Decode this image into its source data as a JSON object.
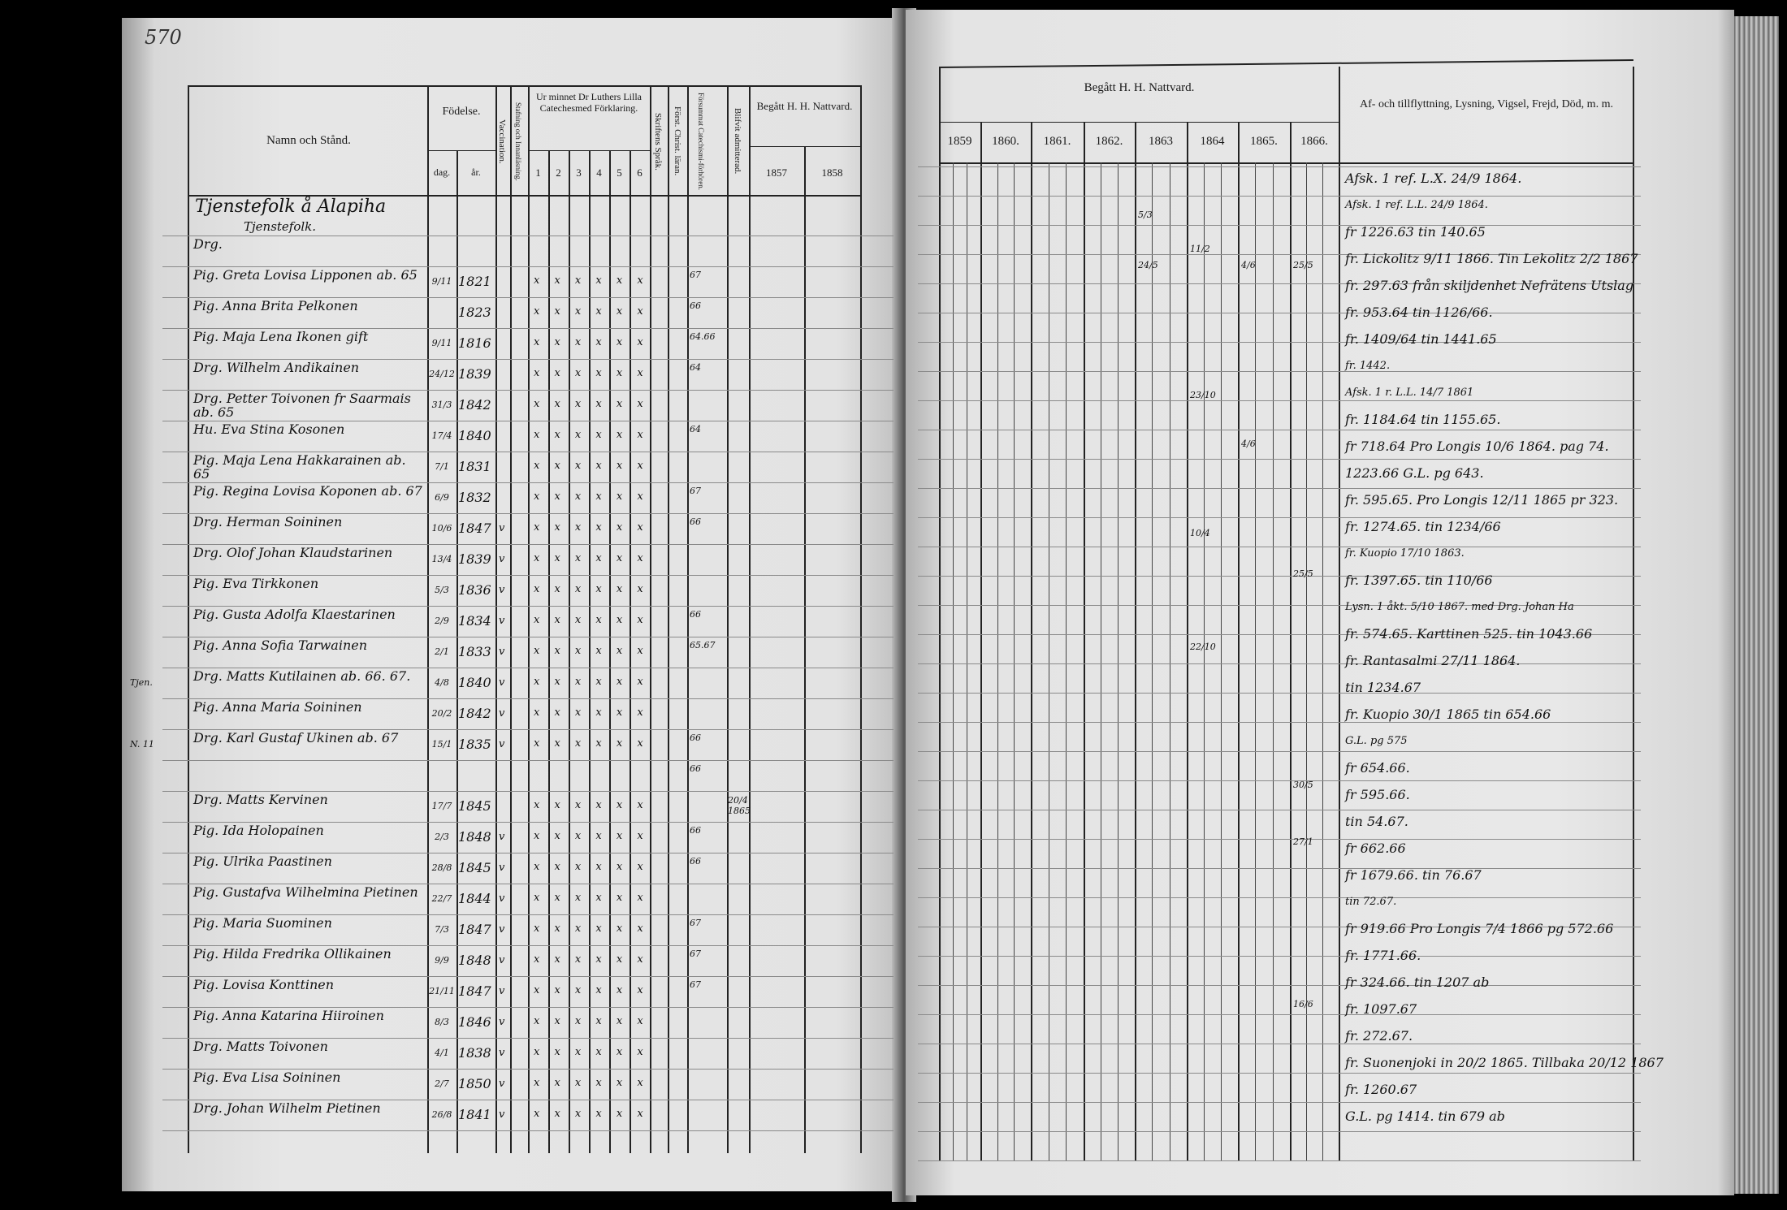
{
  "left_page": {
    "page_number": "570",
    "headers": {
      "name": "Namn och Stånd.",
      "birth": "Födelse.",
      "birth_day": "dag.",
      "birth_year": "år.",
      "vaccination": "Vaccination.",
      "reading": "Stafning och Innanläsning.",
      "catechism": "Ur minnet Dr Luthers Lilla Catechesmed Förklaring.",
      "catechism_cols": [
        "1",
        "2",
        "3",
        "4",
        "5",
        "6"
      ],
      "scripture": "Skriftens Språk.",
      "christianity": "Först. Christ. läran.",
      "missed": "Försummat Catechismi-förhören.",
      "admitted": "Blifvit admitterad.",
      "communion": "Begått H. H. Nattvard.",
      "communion_years": [
        "1857",
        "1858"
      ]
    },
    "section_title": "Tjenstefolk å Alapiha",
    "section_subtitle": "Tjenstefolk.",
    "rows": [
      {
        "name": "Drg.",
        "day": "",
        "year": "",
        "vacc": "",
        "cat": "",
        "fors": ""
      },
      {
        "name": "Pig. Greta Lovisa Lipponen ab. 65",
        "day": "9/11",
        "year": "1821",
        "vacc": "",
        "cat": "x x x x x x",
        "fors": "67"
      },
      {
        "name": "Pig. Anna Brita Pelkonen",
        "day": "",
        "year": "1823",
        "vacc": "",
        "cat": "x x x x x x",
        "fors": "66"
      },
      {
        "name": "Pig. Maja Lena Ikonen gift",
        "day": "9/11",
        "year": "1816",
        "vacc": "",
        "cat": "x x x x x x",
        "fors": "64.66"
      },
      {
        "name": "Drg. Wilhelm Andikainen",
        "day": "24/12",
        "year": "1839",
        "vacc": "",
        "cat": "x x x x x x",
        "fors": "64"
      },
      {
        "name": "Drg. Petter Toivonen fr Saarmais ab. 65",
        "day": "31/3",
        "year": "1842",
        "vacc": "",
        "cat": "x x x x x x",
        "fors": ""
      },
      {
        "name": "Hu. Eva Stina Kosonen",
        "day": "17/4",
        "year": "1840",
        "vacc": "",
        "cat": "x x x x x x",
        "fors": "64"
      },
      {
        "name": "Pig. Maja Lena Hakkarainen ab. 65",
        "day": "7/1",
        "year": "1831",
        "vacc": "",
        "cat": "x x x x x x",
        "fors": ""
      },
      {
        "name": "Pig. Regina Lovisa Koponen ab. 67",
        "day": "6/9",
        "year": "1832",
        "vacc": "",
        "cat": "x x x x x x",
        "fors": "67"
      },
      {
        "name": "Drg. Herman Soininen",
        "day": "10/6",
        "year": "1847",
        "vacc": "v",
        "cat": "x x x x x x",
        "fors": "66"
      },
      {
        "name": "Drg. Olof Johan Klaudstarinen",
        "day": "13/4",
        "year": "1839",
        "vacc": "v",
        "cat": "x x x x x x",
        "fors": ""
      },
      {
        "name": "Pig. Eva Tirkkonen",
        "day": "5/3",
        "year": "1836",
        "vacc": "v",
        "cat": "x x x x x x",
        "fors": ""
      },
      {
        "name": "Pig. Gusta Adolfa Klaestarinen",
        "day": "2/9",
        "year": "1834",
        "vacc": "v",
        "cat": "x x x x x x",
        "fors": "66"
      },
      {
        "name": "Pig. Anna Sofia Tarwainen",
        "day": "2/1",
        "year": "1833",
        "vacc": "v",
        "cat": "x x x x x x",
        "fors": "65.67"
      },
      {
        "name": "Drg. Matts Kutilainen ab. 66. 67.",
        "day": "4/8",
        "year": "1840",
        "vacc": "v",
        "cat": "x x x x x x",
        "fors": "",
        "margin": "Tjen."
      },
      {
        "name": "Pig. Anna Maria Soininen",
        "day": "20/2",
        "year": "1842",
        "vacc": "v",
        "cat": "x x x x x x",
        "fors": ""
      },
      {
        "name": "Drg. Karl Gustaf Ukinen ab. 67",
        "day": "15/1",
        "year": "1835",
        "vacc": "v",
        "cat": "x x x x x x",
        "fors": "66",
        "margin": "N. 11"
      },
      {
        "name": "",
        "day": "",
        "year": "",
        "vacc": "",
        "cat": "",
        "fors": "66"
      },
      {
        "name": "Drg. Matts Kervinen",
        "day": "17/7",
        "year": "1845",
        "vacc": "",
        "cat": "x x x x x x",
        "fors": "",
        "admitted": "20/4 1865"
      },
      {
        "name": "Pig. Ida Holopainen",
        "day": "2/3",
        "year": "1848",
        "vacc": "v",
        "cat": "x x x x x x",
        "fors": "66"
      },
      {
        "name": "Pig. Ulrika Paastinen",
        "day": "28/8",
        "year": "1845",
        "vacc": "v",
        "cat": "x x x x x x",
        "fors": "66"
      },
      {
        "name": "Pig. Gustafva Wilhelmina Pietinen",
        "day": "22/7",
        "year": "1844",
        "vacc": "v",
        "cat": "x x x x x x",
        "fors": ""
      },
      {
        "name": "Pig. Maria Suominen",
        "day": "7/3",
        "year": "1847",
        "vacc": "v",
        "cat": "x x x x x x",
        "fors": "67"
      },
      {
        "name": "Pig. Hilda Fredrika Ollikainen",
        "day": "9/9",
        "year": "1848",
        "vacc": "v",
        "cat": "x x x x x x",
        "fors": "67"
      },
      {
        "name": "Pig. Lovisa Konttinen",
        "day": "21/11",
        "year": "1847",
        "vacc": "v",
        "cat": "x x x x x x",
        "fors": "67"
      },
      {
        "name": "Pig. Anna Katarina Hiiroinen",
        "day": "8/3",
        "year": "1846",
        "vacc": "v",
        "cat": "x x x x x x",
        "fors": ""
      },
      {
        "name": "Drg. Matts Toivonen",
        "day": "4/1",
        "year": "1838",
        "vacc": "v",
        "cat": "x x x x x x",
        "fors": ""
      },
      {
        "name": "Pig. Eva Lisa Soininen",
        "day": "2/7",
        "year": "1850",
        "vacc": "v",
        "cat": "x x x x x x",
        "fors": ""
      },
      {
        "name": "Drg. Johan Wilhelm Pietinen",
        "day": "26/8",
        "year": "1841",
        "vacc": "v",
        "cat": "x x x x x x",
        "fors": ""
      }
    ]
  },
  "right_page": {
    "headers": {
      "communion": "Begått H. H. Nattvard.",
      "communion_years": [
        "1859",
        "1860.",
        "1861.",
        "1862.",
        "1863",
        "1864",
        "1865.",
        "1866."
      ],
      "remarks": "Af- och tillflyttning, Lysning, Vigsel, Frejd, Död, m. m."
    },
    "notes": [
      "Afsk. 1 ref. L.X. 24/9 1864.",
      "Afsk. 1 ref. L.L. 24/9 1864.",
      "fr 1226.63 tin 140.65",
      "fr. Lickolitz 9/11 1866. Tin Lekolitz 2/2 1867",
      "fr. 297.63 från skiljdenhet Nefrätens Utslag",
      "fr. 953.64 tin 1126/66.",
      "fr. 1409/64 tin 1441.65",
      "fr. 1442.",
      "Afsk. 1 r. L.L. 14/7 1861",
      "fr. 1184.64 tin 1155.65.",
      "fr 718.64 Pro Longis 10/6 1864. pag 74.",
      "1223.66 G.L. pg 643.",
      "fr. 595.65. Pro Longis 12/11 1865 pr 323.",
      "fr. 1274.65. tin 1234/66",
      "fr. Kuopio 17/10 1863.",
      "fr. 1397.65. tin 110/66",
      "Lysn. 1 åkt. 5/10 1867. med Drg. Johan Ha",
      "fr. 574.65. Karttinen 525. tin 1043.66",
      "fr. Rantasalmi 27/11 1864.",
      "tin 1234.67",
      "fr. Kuopio 30/1 1865 tin 654.66",
      "G.L. pg 575",
      "fr 654.66.",
      "fr 595.66.",
      "tin 54.67.",
      "fr 662.66",
      "fr 1679.66. tin 76.67",
      "tin 72.67.",
      "fr 919.66 Pro Longis 7/4 1866 pg 572.66",
      "fr. 1771.66.",
      "fr 324.66. tin 1207 ab",
      "fr. 1097.67",
      "fr. 272.67.",
      "fr. Suonenjoki in 20/2 1865. Tillbaka 20/12 1867",
      "fr. 1260.67",
      "G.L. pg 1414. tin 679 ab"
    ],
    "marks": [
      {
        "col": "1863",
        "text": "5/3"
      },
      {
        "col": "1864",
        "text": "11/2"
      },
      {
        "col": "1863",
        "text": "24/5"
      },
      {
        "col": "1865.",
        "text": "4/6"
      },
      {
        "col": "1866.",
        "text": "25/5"
      },
      {
        "col": "1864",
        "text": "23/10"
      },
      {
        "col": "1865.",
        "text": "4/6"
      },
      {
        "col": "1864",
        "text": "10/4"
      },
      {
        "col": "1866.",
        "text": "25/5"
      },
      {
        "col": "1864",
        "text": "22/10"
      },
      {
        "col": "1866.",
        "text": "30/5"
      },
      {
        "col": "1866.",
        "text": "27/1"
      },
      {
        "col": "1866.",
        "text": "16/6"
      }
    ]
  },
  "colors": {
    "paper": "#e2e2e2",
    "ink": "#111111",
    "background": "#000000"
  }
}
